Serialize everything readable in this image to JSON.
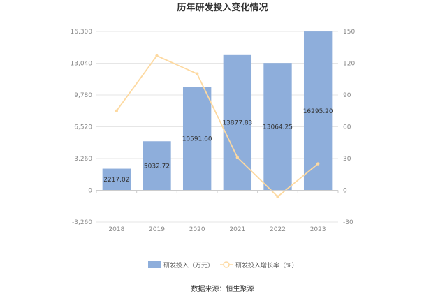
{
  "chart_data": {
    "type": "bar",
    "title": "历年研发投入变化情况",
    "categories": [
      "2018",
      "2019",
      "2020",
      "2021",
      "2022",
      "2023"
    ],
    "series": [
      {
        "name": "研发投入（万元）",
        "type": "bar",
        "axis": "left",
        "values": [
          2217.02,
          5032.72,
          10591.6,
          13877.83,
          13064.25,
          16295.2
        ],
        "labels": [
          "2217.02",
          "5032.72",
          "10591.60",
          "13877.83",
          "13064.25",
          "16295.20"
        ],
        "color": "#8eaedb"
      },
      {
        "name": "研发投入增长率（%）",
        "type": "line",
        "axis": "right",
        "values": [
          75,
          127,
          110,
          31,
          -6,
          25
        ],
        "color": "#fdd9a0"
      }
    ],
    "y_left": {
      "min": -3260,
      "max": 16300,
      "ticks": [
        "16,300",
        "13,040",
        "9,780",
        "6,520",
        "3,260",
        "0",
        "-3,260"
      ],
      "tick_values": [
        16300,
        13040,
        9780,
        6520,
        3260,
        0,
        -3260
      ]
    },
    "y_right": {
      "min": -30,
      "max": 150,
      "ticks": [
        "150",
        "120",
        "90",
        "60",
        "30",
        "0",
        "-30"
      ],
      "tick_values": [
        150,
        120,
        90,
        60,
        30,
        0,
        -30
      ]
    },
    "grid": true,
    "legend": "bottom-center"
  },
  "source": "数据来源：恒生聚源"
}
